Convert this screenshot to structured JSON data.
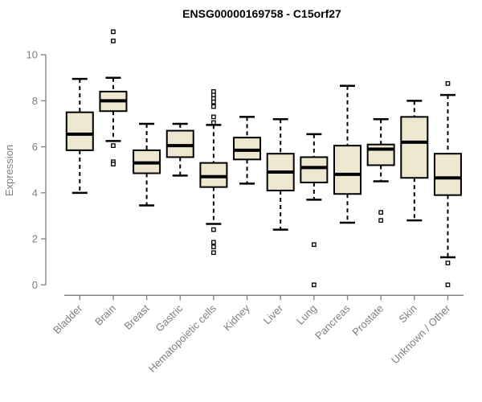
{
  "chart_data": {
    "type": "boxplot",
    "title": "ENSG00000169758 - C15orf27",
    "ylabel": "Expression",
    "xlabel": "",
    "ylim": [
      0,
      10
    ],
    "yticks": [
      0,
      2,
      4,
      6,
      8,
      10
    ],
    "grid": false,
    "legend": "none",
    "categories": [
      "Bladder",
      "Brain",
      "Breast",
      "Gastric",
      "Hematopoietic cells",
      "Kidney",
      "Liver",
      "Lung",
      "Pancreas",
      "Prostate",
      "Skin",
      "Unknown / Other"
    ],
    "boxes": [
      {
        "label": "Bladder",
        "whisker_low": 4.0,
        "q1": 5.85,
        "median": 6.55,
        "q3": 7.5,
        "whisker_high": 8.95,
        "outliers": []
      },
      {
        "label": "Brain",
        "whisker_low": 6.25,
        "q1": 7.55,
        "median": 8.0,
        "q3": 8.4,
        "whisker_high": 9.0,
        "outliers": [
          11.0,
          10.6,
          6.05,
          5.35,
          5.25
        ]
      },
      {
        "label": "Breast",
        "whisker_low": 3.45,
        "q1": 4.85,
        "median": 5.3,
        "q3": 5.85,
        "whisker_high": 7.0,
        "outliers": []
      },
      {
        "label": "Gastric",
        "whisker_low": 4.75,
        "q1": 5.55,
        "median": 6.05,
        "q3": 6.7,
        "whisker_high": 7.0,
        "outliers": []
      },
      {
        "label": "Hematopoietic cells",
        "whisker_low": 2.65,
        "q1": 4.25,
        "median": 4.7,
        "q3": 5.3,
        "whisker_high": 6.95,
        "outliers": [
          8.4,
          8.25,
          8.1,
          7.95,
          7.75,
          7.3,
          7.05,
          2.4,
          1.85,
          1.65,
          1.4
        ]
      },
      {
        "label": "Kidney",
        "whisker_low": 4.4,
        "q1": 5.45,
        "median": 5.85,
        "q3": 6.4,
        "whisker_high": 7.3,
        "outliers": []
      },
      {
        "label": "Liver",
        "whisker_low": 2.4,
        "q1": 4.1,
        "median": 4.9,
        "q3": 5.7,
        "whisker_high": 7.2,
        "outliers": []
      },
      {
        "label": "Lung",
        "whisker_low": 3.7,
        "q1": 4.45,
        "median": 5.1,
        "q3": 5.55,
        "whisker_high": 6.55,
        "outliers": [
          1.75,
          0.0
        ]
      },
      {
        "label": "Pancreas",
        "whisker_low": 2.7,
        "q1": 3.95,
        "median": 4.8,
        "q3": 6.05,
        "whisker_high": 8.65,
        "outliers": []
      },
      {
        "label": "Prostate",
        "whisker_low": 4.5,
        "q1": 5.2,
        "median": 5.9,
        "q3": 6.1,
        "whisker_high": 7.2,
        "outliers": [
          3.15,
          2.8
        ]
      },
      {
        "label": "Skin",
        "whisker_low": 2.8,
        "q1": 4.65,
        "median": 6.2,
        "q3": 7.3,
        "whisker_high": 8.0,
        "outliers": []
      },
      {
        "label": "Unknown / Other",
        "whisker_low": 1.2,
        "q1": 3.9,
        "median": 4.65,
        "q3": 5.7,
        "whisker_high": 8.25,
        "outliers": [
          8.75,
          0.95,
          0.0
        ]
      }
    ],
    "style": {
      "box_fill": "#ece7ce",
      "box_stroke": "#000000",
      "median_color": "#000000",
      "whisker_color": "#000000",
      "outlier_stroke": "#000000",
      "outlier_fill": "#ffffff",
      "axis_color": "#7f7f7f",
      "title_color": "#000000",
      "background": "#ffffff"
    }
  }
}
